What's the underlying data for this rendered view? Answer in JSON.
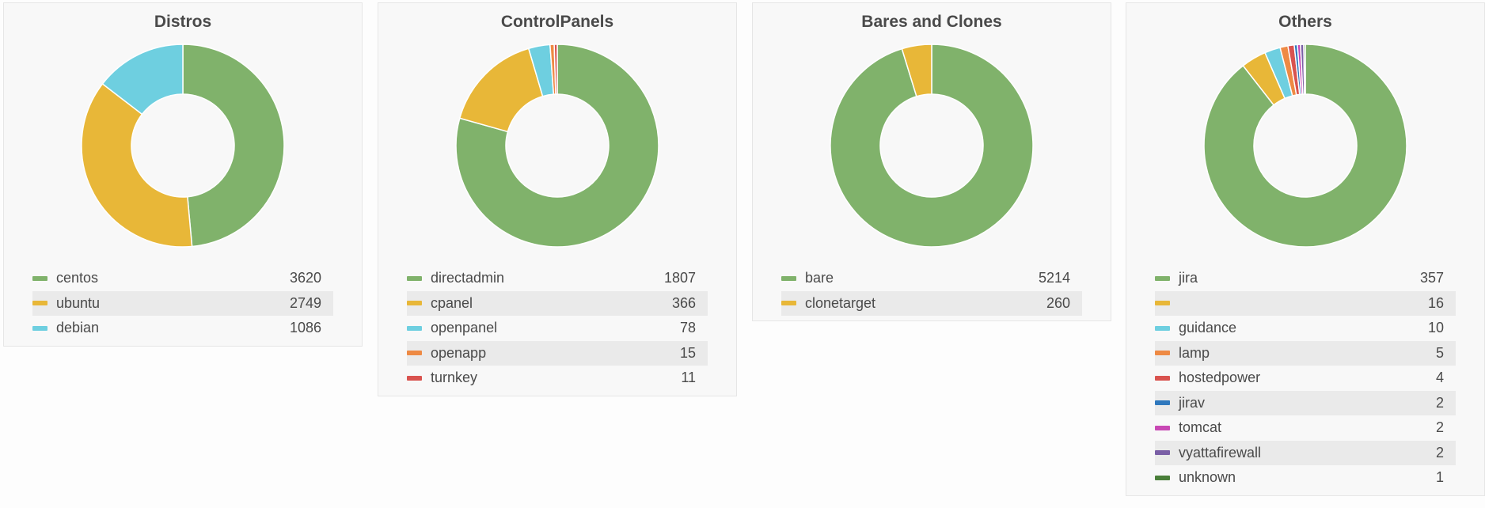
{
  "chart_data": [
    {
      "type": "pie",
      "title": "Distros",
      "categories": [
        "centos",
        "ubuntu",
        "debian"
      ],
      "values": [
        3620,
        2749,
        1086
      ],
      "colors": [
        "#80b26b",
        "#e8b738",
        "#6ecfe0"
      ]
    },
    {
      "type": "pie",
      "title": "ControlPanels",
      "categories": [
        "directadmin",
        "cpanel",
        "openpanel",
        "openapp",
        "turnkey"
      ],
      "values": [
        1807,
        366,
        78,
        15,
        11
      ],
      "colors": [
        "#80b26b",
        "#e8b738",
        "#6ecfe0",
        "#ee8a44",
        "#d9534f"
      ]
    },
    {
      "type": "pie",
      "title": "Bares and Clones",
      "categories": [
        "bare",
        "clonetarget"
      ],
      "values": [
        5214,
        260
      ],
      "colors": [
        "#80b26b",
        "#e8b738"
      ]
    },
    {
      "type": "pie",
      "title": "Others",
      "categories": [
        "jira",
        "",
        "guidance",
        "lamp",
        "hostedpower",
        "jirav",
        "tomcat",
        "vyattafirewall",
        "unknown"
      ],
      "values": [
        357,
        16,
        10,
        5,
        4,
        2,
        2,
        2,
        1
      ],
      "colors": [
        "#80b26b",
        "#e8b738",
        "#6ecfe0",
        "#ee8a44",
        "#d9534f",
        "#2f78bd",
        "#c848b4",
        "#7a5fa6",
        "#4a7f3a"
      ]
    }
  ]
}
